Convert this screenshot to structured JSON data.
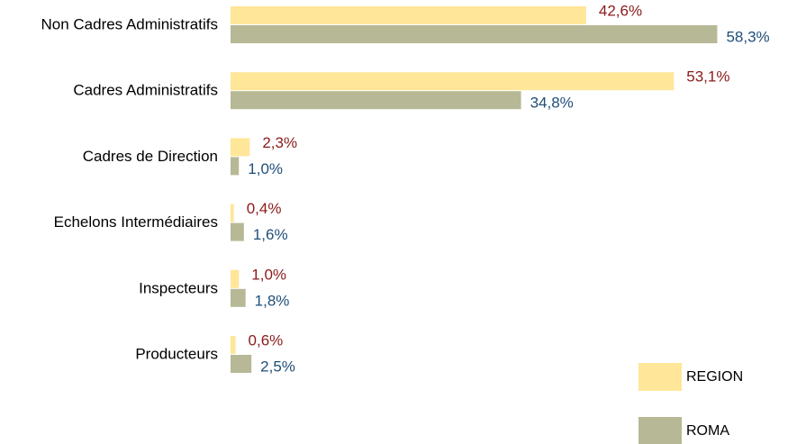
{
  "chart_data": {
    "type": "barh",
    "categories": [
      "Non Cadres Administratifs",
      "Cadres Administratifs",
      "Cadres de Direction",
      "Echelons Intermédiaires",
      "Inspecteurs",
      "Producteurs"
    ],
    "series": [
      {
        "name": "REGION",
        "color": "#ffe699",
        "label_color": "#8b1a1a",
        "values": [
          42.6,
          53.1,
          2.3,
          0.4,
          1.0,
          0.6
        ],
        "value_labels": [
          "42,6%",
          "53,1%",
          "2,3%",
          "0,4%",
          "1,0%",
          "0,6%"
        ]
      },
      {
        "name": "ROMA",
        "color": "#b7b996",
        "label_color": "#1f4e79",
        "values": [
          58.3,
          34.8,
          1.0,
          1.6,
          1.8,
          2.5
        ],
        "value_labels": [
          "58,3%",
          "34,8%",
          "1,0%",
          "1,6%",
          "1,8%",
          "2,5%"
        ]
      }
    ],
    "legend": "bottom-right"
  }
}
